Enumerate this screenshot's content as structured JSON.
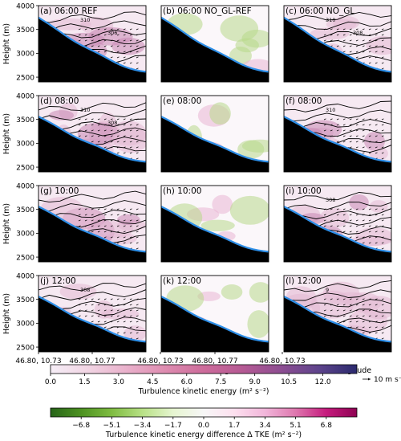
{
  "chart_data": {
    "type": "heatmap",
    "layout": "4x3 panel grid",
    "ylabel": "Height (m)",
    "xlabel": "latitude,longitude",
    "x_ticklabels": [
      "46.80, 10.73",
      "46.80, 10.77",
      "46.80, 10.73",
      "46.80, 10.77",
      "46.80, 10.73"
    ],
    "ylim": [
      2400,
      4000
    ],
    "y_ticks": [
      2500,
      3000,
      3500,
      4000
    ],
    "contour_interval_K": 2,
    "panels": [
      {
        "label": "(a) 06:00",
        "extra": "REF",
        "field": "tke",
        "contours": true,
        "contour_labels": [
          "310",
          "306"
        ],
        "terrain_start": 3750
      },
      {
        "label": "(b) 06:00",
        "extra": "NO_GL-REF",
        "field": "diff",
        "contours": false,
        "contour_labels": [],
        "terrain_start": 3750
      },
      {
        "label": "(c) 06:00",
        "extra": "NO_GL",
        "field": "tke",
        "contours": true,
        "contour_labels": [
          "310",
          "308"
        ],
        "terrain_start": 3750
      },
      {
        "label": "(d) 08:00",
        "extra": "",
        "field": "tke",
        "contours": true,
        "contour_labels": [
          "310",
          "308"
        ],
        "terrain_start": 3560
      },
      {
        "label": "(e) 08:00",
        "extra": "",
        "field": "diff",
        "contours": false,
        "contour_labels": [],
        "terrain_start": 3560
      },
      {
        "label": "(f) 08:00",
        "extra": "",
        "field": "tke",
        "contours": true,
        "contour_labels": [
          "310"
        ],
        "terrain_start": 3560
      },
      {
        "label": "(g) 10:00",
        "extra": "",
        "field": "tke",
        "contours": true,
        "contour_labels": [],
        "terrain_start": 3560
      },
      {
        "label": "(h) 10:00",
        "extra": "",
        "field": "diff",
        "contours": false,
        "contour_labels": [],
        "terrain_start": 3560
      },
      {
        "label": "(i) 10:00",
        "extra": "",
        "field": "tke",
        "contours": true,
        "contour_labels": [
          "308"
        ],
        "terrain_start": 3560
      },
      {
        "label": "(j) 12:00",
        "extra": "",
        "field": "tke",
        "contours": true,
        "contour_labels": [
          "308"
        ],
        "terrain_start": 3560
      },
      {
        "label": "(k) 12:00",
        "extra": "",
        "field": "diff",
        "contours": false,
        "contour_labels": [],
        "terrain_start": 3560
      },
      {
        "label": "(l) 12:00",
        "extra": "",
        "field": "tke",
        "contours": true,
        "contour_labels": [
          "9"
        ],
        "terrain_start": 3560
      }
    ],
    "colorbars": [
      {
        "label": "Turbulence kinetic energy (m² s⁻²)",
        "ticks": [
          "0.0",
          "1.5",
          "3.0",
          "4.5",
          "6.0",
          "7.5",
          "9.0",
          "10.5",
          "12.0"
        ],
        "range": [
          0,
          13.5
        ],
        "colors": [
          "#f6eef7",
          "#f1d4e3",
          "#e9b0cb",
          "#de8cb0",
          "#cd6c9b",
          "#b65a94",
          "#8e4e92",
          "#5e448c",
          "#2b2a6e"
        ]
      },
      {
        "label": "Turbulence kinetic energy difference Δ TKE (m² s⁻²)",
        "ticks": [
          "−6.8",
          "−5.1",
          "−3.4",
          "−1.7",
          "0.0",
          "1.7",
          "3.4",
          "5.1",
          "6.8"
        ],
        "range": [
          -8.5,
          8.5
        ],
        "colors": [
          "#276419",
          "#4d9221",
          "#7fbc41",
          "#b8e186",
          "#e6f5d0",
          "#f7f7f7",
          "#fde0ef",
          "#f1b6da",
          "#de77ae",
          "#c51b7d",
          "#8e0152"
        ]
      }
    ],
    "wind_reference": "10 m s⁻¹",
    "terrain_color": "#000000",
    "surface_line_color": "#2e8fe8"
  }
}
